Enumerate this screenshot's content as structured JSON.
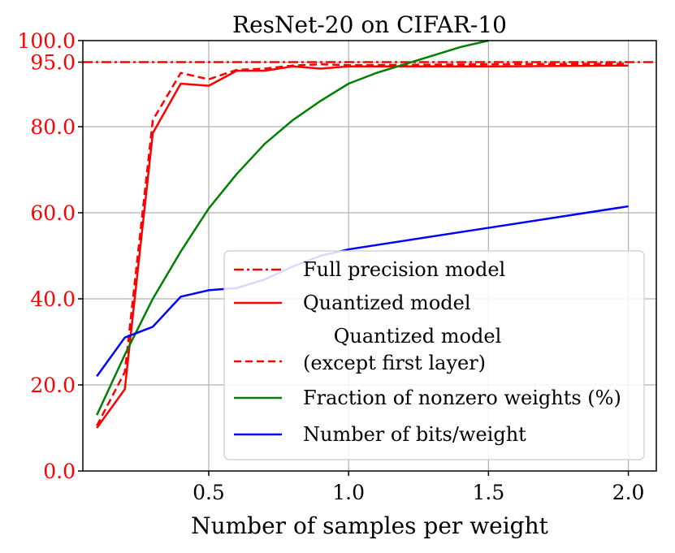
{
  "chart_data": {
    "type": "line",
    "title": "ResNet-20 on CIFAR-10",
    "xlabel": "Number of samples per weight",
    "ylabel": "",
    "xlim": [
      0.05,
      2.1
    ],
    "ylim": [
      0,
      100
    ],
    "xticks": [
      0.5,
      1.0,
      1.5,
      2.0
    ],
    "xtick_labels": [
      "0.5",
      "1.0",
      "1.5",
      "2.0"
    ],
    "yticks": [
      0,
      20,
      40,
      60,
      80,
      95,
      100
    ],
    "ytick_labels": [
      "0.0",
      "20.0",
      "40.0",
      "60.0",
      "80.0",
      "95.0",
      "100.0"
    ],
    "grid": true,
    "legend_position": "lower-right",
    "series": [
      {
        "name": "Full precision model",
        "color": "#ff0000",
        "dash": "dashdot",
        "hline": 95.0
      },
      {
        "name": "Quantized model",
        "color": "#ff0000",
        "dash": "solid",
        "x": [
          0.1,
          0.2,
          0.3,
          0.4,
          0.5,
          0.6,
          0.7,
          0.8,
          0.9,
          1.0,
          1.5,
          2.0
        ],
        "y": [
          10.0,
          19.0,
          78.5,
          90.0,
          89.5,
          93.0,
          93.0,
          94.0,
          93.5,
          94.0,
          94.0,
          94.2
        ]
      },
      {
        "name_lines": [
          "Quantized model",
          "(except first layer)"
        ],
        "color": "#ff0000",
        "dash": "dashed",
        "x": [
          0.1,
          0.2,
          0.3,
          0.4,
          0.5,
          0.6,
          0.7,
          0.8,
          0.9,
          1.0,
          1.5,
          2.0
        ],
        "y": [
          10.5,
          23.0,
          81.5,
          92.5,
          91.0,
          93.2,
          93.5,
          94.2,
          94.5,
          94.3,
          94.5,
          94.6
        ]
      },
      {
        "name": "Fraction of nonzero weights (%)",
        "color": "#008000",
        "dash": "solid",
        "x": [
          0.1,
          0.2,
          0.3,
          0.4,
          0.5,
          0.6,
          0.7,
          0.8,
          0.9,
          1.0,
          1.1,
          1.2,
          1.3,
          1.4,
          1.5
        ],
        "y": [
          13.0,
          27.0,
          40.0,
          51.0,
          61.0,
          69.0,
          76.0,
          81.5,
          86.0,
          90.0,
          92.5,
          94.5,
          96.5,
          98.5,
          100.0
        ]
      },
      {
        "name": "Number of bits/weight",
        "color": "#0000ff",
        "dash": "solid",
        "x": [
          0.1,
          0.2,
          0.3,
          0.4,
          0.5,
          0.6,
          0.7,
          0.8,
          0.9,
          1.0,
          1.5,
          2.0
        ],
        "y": [
          22.0,
          31.0,
          33.5,
          40.5,
          42.0,
          42.5,
          44.5,
          47.5,
          50.0,
          51.5,
          56.5,
          61.5
        ]
      }
    ]
  }
}
